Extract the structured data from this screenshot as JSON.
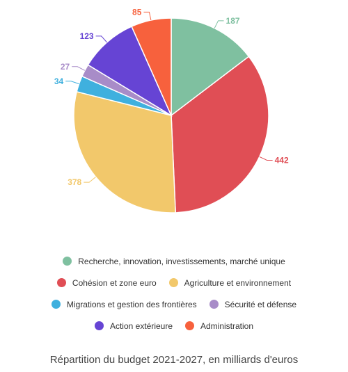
{
  "chart_data": {
    "type": "pie",
    "title": "Répartition du budget 2021-2027, en milliards d'euros",
    "legend_position": "bottom",
    "slices": [
      {
        "label": "Recherche, innovation, investissements, marché unique",
        "value": 187,
        "color": "#7fc0a0"
      },
      {
        "label": "Cohésion et zone euro",
        "value": 442,
        "color": "#e04e55"
      },
      {
        "label": "Agriculture et environnement",
        "value": 378,
        "color": "#f2c86b"
      },
      {
        "label": "Migrations et gestion des frontières",
        "value": 34,
        "color": "#3fb0de"
      },
      {
        "label": "Sécurité et défense",
        "value": 27,
        "color": "#a88cc8"
      },
      {
        "label": "Action extérieure",
        "value": 123,
        "color": "#6644d4"
      },
      {
        "label": "Administration",
        "value": 85,
        "color": "#f7613d"
      }
    ]
  },
  "legend_rows": [
    [
      0
    ],
    [
      1,
      2
    ],
    [
      3,
      4
    ],
    [
      5,
      6
    ]
  ]
}
